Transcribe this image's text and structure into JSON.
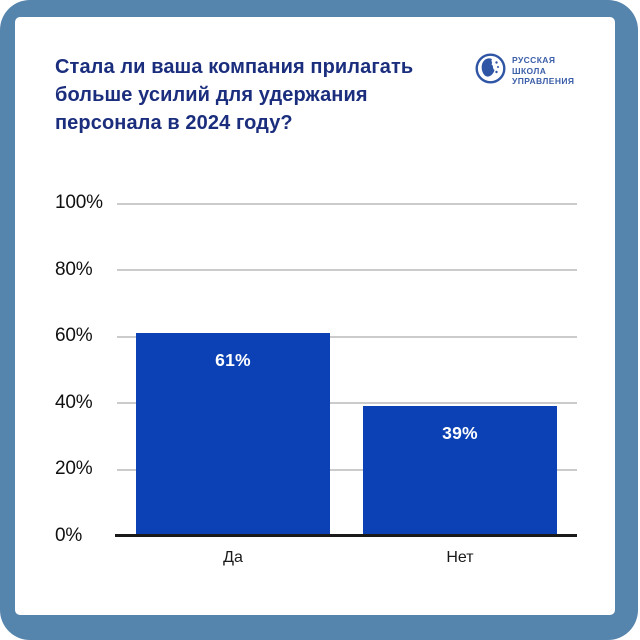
{
  "page": {
    "background": "#ffffff",
    "frame_color": "#5584ad"
  },
  "header": {
    "title_lines": [
      "Стала ли ваша компания прилагать",
      "больше усилий для удержания",
      "персонала в 2024 году?"
    ],
    "title_color": "#1b2e7d",
    "logo": {
      "lines": [
        "РУССКАЯ",
        "ШКОЛА",
        "УПРАВЛЕНИЯ"
      ],
      "color": "#3b5ea8",
      "icon": "globe-icon"
    }
  },
  "chart_data": {
    "type": "bar",
    "title": "Стала ли ваша компания прилагать больше усилий для удержания персонала в 2024 году?",
    "categories": [
      "Да",
      "Нет"
    ],
    "values": [
      61,
      39
    ],
    "value_labels": [
      "61%",
      "39%"
    ],
    "xlabel": "",
    "ylabel": "",
    "ylim": [
      0,
      100
    ],
    "yticks": [
      "100%",
      "80%",
      "60%",
      "40%",
      "20%",
      "0%"
    ],
    "grid": true,
    "legend": false,
    "bar_color": "#0b41b4",
    "bar_label_color": "#ffffff",
    "gridline_color": "#cbcbcb",
    "baseline_color": "#1a1a1a",
    "tick_label_color": "#111111"
  }
}
